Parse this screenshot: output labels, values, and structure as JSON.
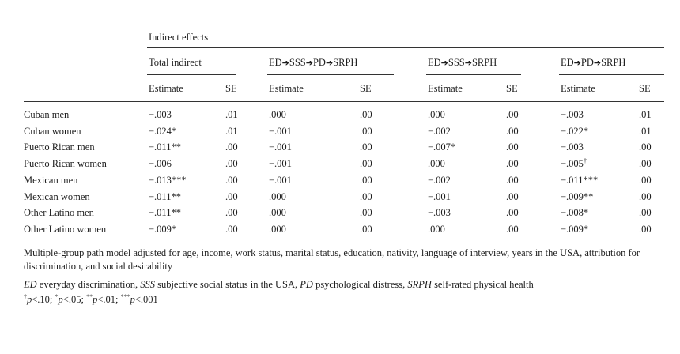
{
  "table": {
    "header": {
      "group_title": "Indirect effects",
      "groups": [
        {
          "label": "Total indirect"
        },
        {
          "label": "ED➔SSS➔PD➔SRPH"
        },
        {
          "label": "ED➔SSS➔SRPH"
        },
        {
          "label": "ED➔PD➔SRPH"
        }
      ],
      "estimate_label": "Estimate",
      "se_label": "SE"
    },
    "rows": [
      {
        "label": "Cuban men",
        "cells": [
          "−.003",
          ".01",
          ".000",
          ".00",
          ".000",
          ".00",
          "−.003",
          ".01"
        ]
      },
      {
        "label": "Cuban women",
        "cells": [
          "−.024*",
          ".01",
          "−.001",
          ".00",
          "−.002",
          ".00",
          "−.022*",
          ".01"
        ]
      },
      {
        "label": "Puerto Rican men",
        "cells": [
          "−.011**",
          ".00",
          "−.001",
          ".00",
          "−.007*",
          ".00",
          "−.003",
          ".00"
        ]
      },
      {
        "label": "Puerto Rican women",
        "cells": [
          "−.006",
          ".00",
          "−.001",
          ".00",
          ".000",
          ".00",
          "−.005†",
          ".00"
        ]
      },
      {
        "label": "Mexican men",
        "cells": [
          "−.013***",
          ".00",
          "−.001",
          ".00",
          "−.002",
          ".00",
          "−.011***",
          ".00"
        ]
      },
      {
        "label": "Mexican women",
        "cells": [
          "−.011**",
          ".00",
          ".000",
          ".00",
          "−.001",
          ".00",
          "−.009**",
          ".00"
        ]
      },
      {
        "label": "Other Latino men",
        "cells": [
          "−.011**",
          ".00",
          ".000",
          ".00",
          "−.003",
          ".00",
          "−.008*",
          ".00"
        ]
      },
      {
        "label": "Other Latino women",
        "cells": [
          "−.009*",
          ".00",
          ".000",
          ".00",
          ".000",
          ".00",
          "−.009*",
          ".00"
        ]
      }
    ]
  },
  "notes": {
    "model": "Multiple-group path model adjusted for age, income, work status, marital status, education, nativity, language of interview, years in the USA, attribution for discrimination, and social desirability",
    "abbrev": [
      {
        "abbr": "ED",
        "text": " everyday discrimination, "
      },
      {
        "abbr": "SSS",
        "text": " subjective social status in the USA, "
      },
      {
        "abbr": "PD",
        "text": " psychological distress, "
      },
      {
        "abbr": "SRPH",
        "text": " self-rated physical health"
      }
    ],
    "significance": [
      {
        "mark": "†",
        "p": "p",
        "text": "<.10; "
      },
      {
        "mark": "*",
        "p": "p",
        "text": "<.05; "
      },
      {
        "mark": "**",
        "p": "p",
        "text": "<.01; "
      },
      {
        "mark": "***",
        "p": "p",
        "text": "<.001"
      }
    ]
  }
}
